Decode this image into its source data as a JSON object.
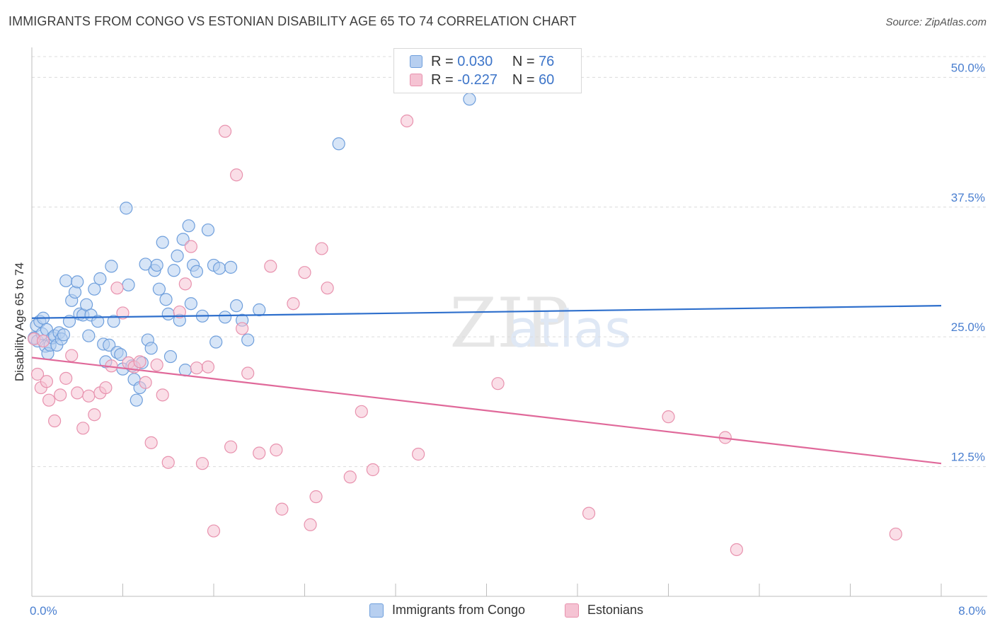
{
  "header": {
    "title": "IMMIGRANTS FROM CONGO VS ESTONIAN DISABILITY AGE 65 TO 74 CORRELATION CHART",
    "source": "Source: ZipAtlas.com"
  },
  "watermark": {
    "zip": "ZIP",
    "atlas": "atlas"
  },
  "legend": {
    "rows": [
      {
        "r_label": "R =",
        "r_value": "0.030",
        "n_label": "N =",
        "n_value": "76"
      },
      {
        "r_label": "R =",
        "r_value": "-0.227",
        "n_label": "N =",
        "n_value": "60"
      }
    ]
  },
  "bottom_legend": {
    "series1": "Immigrants from Congo",
    "series2": "Estonians"
  },
  "colors": {
    "series1_fill": "#b7cff0",
    "series1_stroke": "#6f9fdc",
    "series1_line": "#2e6fcc",
    "series2_fill": "#f5c3d3",
    "series2_stroke": "#e892ae",
    "series2_line": "#e0699a",
    "tick_text": "#4a7fd0",
    "grid": "#dcdcdc"
  },
  "chart_data": {
    "type": "scatter",
    "title": "IMMIGRANTS FROM CONGO VS ESTONIAN DISABILITY AGE 65 TO 74 CORRELATION CHART",
    "xlabel": "",
    "ylabel": "Disability Age 65 to 74",
    "xlim": [
      0,
      8
    ],
    "ylim": [
      0,
      52
    ],
    "x_ticks": [
      "0.0%",
      "8.0%"
    ],
    "y_ticks": [
      {
        "value": 12.5,
        "label": "12.5%"
      },
      {
        "value": 25.0,
        "label": "25.0%"
      },
      {
        "value": 37.5,
        "label": "37.5%"
      },
      {
        "value": 50.0,
        "label": "50.0%"
      }
    ],
    "grid": "horizontal dashed",
    "legend_position": "top-center",
    "series": [
      {
        "name": "Immigrants from Congo",
        "R": 0.03,
        "N": 76,
        "trend": {
          "x": [
            0,
            8
          ],
          "y": [
            26.8,
            28.0
          ]
        },
        "points": [
          [
            0.02,
            24.9
          ],
          [
            0.04,
            26.1
          ],
          [
            0.05,
            24.6
          ],
          [
            0.07,
            26.5
          ],
          [
            0.09,
            25.3
          ],
          [
            0.1,
            26.8
          ],
          [
            0.12,
            24.1
          ],
          [
            0.13,
            25.7
          ],
          [
            0.14,
            23.4
          ],
          [
            0.16,
            24.2
          ],
          [
            0.18,
            24.9
          ],
          [
            0.2,
            25.1
          ],
          [
            0.22,
            24.2
          ],
          [
            0.24,
            25.4
          ],
          [
            0.26,
            24.8
          ],
          [
            0.28,
            25.2
          ],
          [
            0.3,
            30.4
          ],
          [
            0.33,
            26.5
          ],
          [
            0.35,
            28.5
          ],
          [
            0.38,
            29.3
          ],
          [
            0.4,
            30.3
          ],
          [
            0.42,
            27.2
          ],
          [
            0.45,
            27.1
          ],
          [
            0.48,
            28.1
          ],
          [
            0.5,
            25.1
          ],
          [
            0.52,
            27.1
          ],
          [
            0.55,
            29.6
          ],
          [
            0.58,
            26.5
          ],
          [
            0.6,
            30.6
          ],
          [
            0.63,
            24.3
          ],
          [
            0.65,
            22.6
          ],
          [
            0.68,
            24.2
          ],
          [
            0.7,
            31.8
          ],
          [
            0.72,
            26.5
          ],
          [
            0.75,
            23.5
          ],
          [
            0.78,
            23.3
          ],
          [
            0.8,
            21.9
          ],
          [
            0.83,
            37.4
          ],
          [
            0.85,
            30.0
          ],
          [
            0.88,
            22.2
          ],
          [
            0.9,
            20.9
          ],
          [
            0.92,
            18.9
          ],
          [
            0.95,
            20.1
          ],
          [
            0.97,
            22.5
          ],
          [
            1.0,
            32.0
          ],
          [
            1.02,
            24.7
          ],
          [
            1.05,
            23.9
          ],
          [
            1.08,
            31.4
          ],
          [
            1.1,
            31.9
          ],
          [
            1.12,
            29.6
          ],
          [
            1.15,
            34.1
          ],
          [
            1.18,
            28.6
          ],
          [
            1.2,
            27.2
          ],
          [
            1.22,
            23.1
          ],
          [
            1.25,
            31.4
          ],
          [
            1.28,
            32.8
          ],
          [
            1.3,
            26.6
          ],
          [
            1.33,
            34.4
          ],
          [
            1.35,
            21.8
          ],
          [
            1.38,
            35.7
          ],
          [
            1.4,
            28.2
          ],
          [
            1.42,
            31.9
          ],
          [
            1.45,
            31.3
          ],
          [
            1.5,
            27.0
          ],
          [
            1.55,
            35.3
          ],
          [
            1.6,
            31.9
          ],
          [
            1.62,
            24.5
          ],
          [
            1.65,
            31.6
          ],
          [
            1.7,
            26.9
          ],
          [
            1.75,
            31.7
          ],
          [
            1.8,
            28.0
          ],
          [
            1.85,
            26.6
          ],
          [
            1.9,
            24.7
          ],
          [
            2.0,
            27.6
          ],
          [
            2.7,
            43.6
          ],
          [
            3.85,
            47.9
          ]
        ]
      },
      {
        "name": "Estonians",
        "R": -0.227,
        "N": 60,
        "trend": {
          "x": [
            0,
            8
          ],
          "y": [
            23.0,
            12.8
          ]
        },
        "points": [
          [
            0.02,
            24.8
          ],
          [
            0.05,
            21.4
          ],
          [
            0.08,
            20.1
          ],
          [
            0.1,
            24.6
          ],
          [
            0.13,
            20.7
          ],
          [
            0.15,
            18.9
          ],
          [
            0.2,
            16.9
          ],
          [
            0.25,
            19.4
          ],
          [
            0.3,
            21.0
          ],
          [
            0.35,
            23.2
          ],
          [
            0.4,
            19.6
          ],
          [
            0.45,
            16.2
          ],
          [
            0.5,
            19.3
          ],
          [
            0.55,
            17.5
          ],
          [
            0.6,
            19.6
          ],
          [
            0.65,
            20.1
          ],
          [
            0.7,
            22.2
          ],
          [
            0.75,
            29.7
          ],
          [
            0.8,
            27.3
          ],
          [
            0.85,
            22.5
          ],
          [
            0.9,
            22.1
          ],
          [
            0.95,
            22.6
          ],
          [
            1.0,
            20.6
          ],
          [
            1.05,
            14.8
          ],
          [
            1.1,
            22.3
          ],
          [
            1.15,
            19.4
          ],
          [
            1.2,
            12.9
          ],
          [
            1.3,
            27.4
          ],
          [
            1.35,
            30.1
          ],
          [
            1.4,
            33.7
          ],
          [
            1.45,
            22.0
          ],
          [
            1.5,
            12.8
          ],
          [
            1.55,
            22.1
          ],
          [
            1.6,
            6.3
          ],
          [
            1.7,
            44.8
          ],
          [
            1.75,
            14.4
          ],
          [
            1.8,
            40.6
          ],
          [
            1.85,
            25.8
          ],
          [
            1.9,
            21.5
          ],
          [
            2.0,
            13.8
          ],
          [
            2.1,
            31.8
          ],
          [
            2.15,
            14.1
          ],
          [
            2.2,
            8.4
          ],
          [
            2.3,
            28.2
          ],
          [
            2.4,
            31.2
          ],
          [
            2.45,
            6.9
          ],
          [
            2.5,
            9.6
          ],
          [
            2.55,
            33.5
          ],
          [
            2.6,
            29.7
          ],
          [
            2.8,
            11.5
          ],
          [
            2.9,
            17.8
          ],
          [
            3.0,
            12.2
          ],
          [
            3.3,
            45.8
          ],
          [
            3.4,
            13.7
          ],
          [
            4.1,
            20.5
          ],
          [
            4.9,
            8.0
          ],
          [
            5.6,
            17.3
          ],
          [
            6.1,
            15.3
          ],
          [
            6.2,
            4.5
          ],
          [
            7.6,
            6.0
          ]
        ]
      }
    ]
  }
}
